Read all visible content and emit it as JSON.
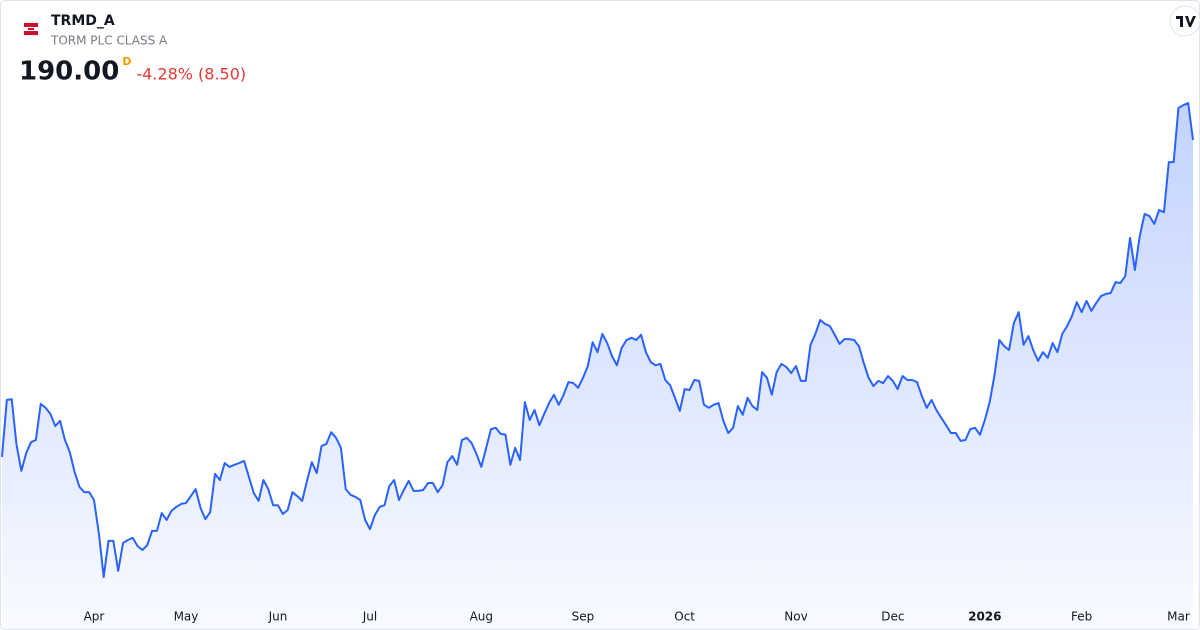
{
  "chart_data": {
    "type": "line",
    "symbol": "TRMD_A",
    "subtitle": "TORM PLC CLASS A",
    "price_label": "190.00",
    "interval": "D",
    "change_label": "-4.28% (8.50)",
    "color": "#2962ff",
    "ylim": [
      84.2,
      201.5
    ],
    "xticks": [
      {
        "value": 19,
        "label": "Apr"
      },
      {
        "value": 38,
        "label": "May"
      },
      {
        "value": 57,
        "label": "Jun"
      },
      {
        "value": 76,
        "label": "Jul"
      },
      {
        "value": 99,
        "label": "Aug"
      },
      {
        "value": 120,
        "label": "Sep"
      },
      {
        "value": 141,
        "label": "Oct"
      },
      {
        "value": 164,
        "label": "Nov"
      },
      {
        "value": 184,
        "label": "Dec"
      },
      {
        "value": 203,
        "label": "2026"
      },
      {
        "value": 223,
        "label": "Feb"
      },
      {
        "value": 243,
        "label": "Mar"
      }
    ],
    "values": [
      117.1,
      130.2,
      130.4,
      119.9,
      113.9,
      118.0,
      120.5,
      121.0,
      129.3,
      128.4,
      127.0,
      124.2,
      125.4,
      121.0,
      118.2,
      113.6,
      110.2,
      109.0,
      109.0,
      107.2,
      99.6,
      89.5,
      97.8,
      97.8,
      90.9,
      97.3,
      98.0,
      98.5,
      96.6,
      95.7,
      96.8,
      100.1,
      100.1,
      104.2,
      102.6,
      104.7,
      105.6,
      106.3,
      106.5,
      108.1,
      109.7,
      105.4,
      102.8,
      104.4,
      113.2,
      111.8,
      115.7,
      114.8,
      115.3,
      115.7,
      116.2,
      112.5,
      108.8,
      107.0,
      111.8,
      109.7,
      106.0,
      106.0,
      104.0,
      104.9,
      109.0,
      108.1,
      107.0,
      111.6,
      115.9,
      113.4,
      119.6,
      120.1,
      122.8,
      121.5,
      119.2,
      109.7,
      108.4,
      107.9,
      107.2,
      102.6,
      100.5,
      103.7,
      105.6,
      106.0,
      110.4,
      111.8,
      107.2,
      109.5,
      111.6,
      109.3,
      109.3,
      109.5,
      111.1,
      111.1,
      109.0,
      110.6,
      115.9,
      117.3,
      115.3,
      121.0,
      121.5,
      120.3,
      117.8,
      114.8,
      119.2,
      123.5,
      123.8,
      122.4,
      122.2,
      115.3,
      119.2,
      116.4,
      129.7,
      125.6,
      127.9,
      124.4,
      127.0,
      129.5,
      131.4,
      129.1,
      131.4,
      134.3,
      134.1,
      133.0,
      135.3,
      138.0,
      143.5,
      141.2,
      145.4,
      143.3,
      140.3,
      138.2,
      142.2,
      144.0,
      144.5,
      144.0,
      145.2,
      141.2,
      138.9,
      138.2,
      138.5,
      134.8,
      133.6,
      130.7,
      127.7,
      132.7,
      132.5,
      134.8,
      134.6,
      129.1,
      128.4,
      129.1,
      129.5,
      125.4,
      122.6,
      123.8,
      128.8,
      126.8,
      130.7,
      128.8,
      127.9,
      136.6,
      135.3,
      131.4,
      136.6,
      138.5,
      137.8,
      136.4,
      138.0,
      134.6,
      134.6,
      142.9,
      145.4,
      148.6,
      147.7,
      147.2,
      145.2,
      143.1,
      144.2,
      144.2,
      144.0,
      142.6,
      138.7,
      135.3,
      133.4,
      134.6,
      134.1,
      135.7,
      134.6,
      132.7,
      135.7,
      134.8,
      134.8,
      134.3,
      131.1,
      128.4,
      130.2,
      127.9,
      126.1,
      124.4,
      122.6,
      122.6,
      120.8,
      121.0,
      123.5,
      123.8,
      122.2,
      125.6,
      129.7,
      135.9,
      144.0,
      142.6,
      141.7,
      147.9,
      150.4,
      142.9,
      144.9,
      141.7,
      139.2,
      141.2,
      139.9,
      143.3,
      141.2,
      145.4,
      147.2,
      149.5,
      152.7,
      150.4,
      153.0,
      150.7,
      152.5,
      154.1,
      154.6,
      154.8,
      157.3,
      157.1,
      158.7,
      167.5,
      160.1,
      167.9,
      173.0,
      172.5,
      170.7,
      173.9,
      173.4,
      184.9,
      184.9,
      197.4,
      198.0,
      198.5,
      190.0
    ]
  }
}
